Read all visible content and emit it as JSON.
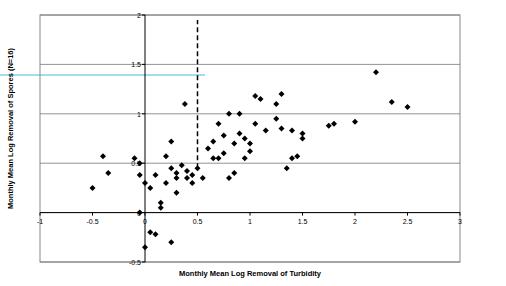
{
  "chart_data": {
    "type": "scatter",
    "x_label": "Monthly Mean Log Removal of Turbidity",
    "y_label": "Monthly Mean Log Removal of Spores (N=16)",
    "x": [
      -0.5,
      -0.4,
      -0.35,
      -0.1,
      -0.05,
      -0.05,
      0.0,
      -0.05,
      0.0,
      0.05,
      0.1,
      0.05,
      0.1,
      0.15,
      0.15,
      0.2,
      0.2,
      0.25,
      0.25,
      0.25,
      0.3,
      0.3,
      0.3,
      0.35,
      0.38,
      0.4,
      0.4,
      0.45,
      0.45,
      0.5,
      0.55,
      0.6,
      0.65,
      0.65,
      0.7,
      0.7,
      0.75,
      0.75,
      0.8,
      0.8,
      0.85,
      0.85,
      0.9,
      0.9,
      0.95,
      0.95,
      1.0,
      1.0,
      1.05,
      1.05,
      1.1,
      1.15,
      1.25,
      1.25,
      1.3,
      1.3,
      1.35,
      1.4,
      1.4,
      1.45,
      1.5,
      1.5,
      1.75,
      1.8,
      2.0,
      2.2,
      2.35,
      2.5
    ],
    "values": [
      0.25,
      0.57,
      0.4,
      0.55,
      0.5,
      0.38,
      0.3,
      0.0,
      -0.35,
      -0.2,
      -0.22,
      0.25,
      0.38,
      0.1,
      0.05,
      0.3,
      0.57,
      -0.3,
      0.45,
      0.72,
      0.35,
      0.4,
      0.2,
      0.48,
      1.1,
      0.42,
      0.35,
      0.38,
      0.3,
      0.45,
      0.35,
      0.65,
      0.55,
      0.72,
      0.55,
      0.9,
      0.6,
      0.78,
      1.0,
      0.35,
      0.7,
      0.4,
      1.0,
      0.8,
      0.55,
      0.75,
      0.7,
      0.62,
      1.18,
      0.9,
      1.15,
      0.83,
      1.1,
      0.95,
      1.2,
      0.85,
      0.45,
      0.83,
      0.55,
      0.57,
      0.75,
      0.8,
      0.88,
      0.9,
      0.92,
      1.42,
      1.12,
      1.07
    ],
    "color": "#000000",
    "marker": "diamond",
    "xlim": [
      -1,
      3
    ],
    "xticks": [
      -1,
      -0.5,
      0,
      0.5,
      1,
      1.5,
      2,
      2.5,
      3
    ],
    "ylim": [
      -0.5,
      2
    ],
    "yticks": [
      -0.5,
      0,
      0.5,
      1,
      1.5,
      2
    ],
    "grid": true,
    "reference_lines": [
      {
        "x": 0.5,
        "y0": 0.45,
        "y1": 1.95,
        "line_style": "dashed"
      }
    ]
  }
}
